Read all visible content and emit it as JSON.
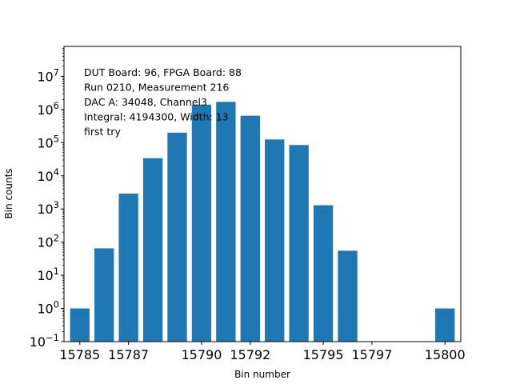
{
  "chart_data": {
    "type": "bar",
    "xlabel": "Bin number",
    "ylabel": "Bin counts",
    "yscale": "log",
    "ylim": [
      0.1,
      80000000
    ],
    "xlim": [
      15784.35,
      15800.65
    ],
    "bar_color": "#1f77b4",
    "grid": false,
    "x_ticks": [
      15785,
      15787,
      15790,
      15792,
      15795,
      15797,
      15800
    ],
    "x_tick_labels": [
      "15785",
      "15787",
      "15790",
      "15792",
      "15795",
      "15797",
      "15800"
    ],
    "y_ticks": [
      {
        "value": 0.1,
        "base": "10",
        "exp": "−1"
      },
      {
        "value": 1,
        "base": "10",
        "exp": "0"
      },
      {
        "value": 10,
        "base": "10",
        "exp": "1"
      },
      {
        "value": 100,
        "base": "10",
        "exp": "2"
      },
      {
        "value": 1000,
        "base": "10",
        "exp": "3"
      },
      {
        "value": 10000,
        "base": "10",
        "exp": "4"
      },
      {
        "value": 100000,
        "base": "10",
        "exp": "5"
      },
      {
        "value": 1000000,
        "base": "10",
        "exp": "6"
      },
      {
        "value": 10000000,
        "base": "10",
        "exp": "7"
      }
    ],
    "x": [
      15785,
      15786,
      15787,
      15788,
      15789,
      15790,
      15791,
      15792,
      15793,
      15794,
      15795,
      15796,
      15800
    ],
    "values": [
      1,
      65,
      2900,
      34000,
      200000,
      1400000,
      1700000,
      650000,
      125000,
      85000,
      1300,
      55,
      1
    ],
    "annotation": [
      "DUT Board: 96, FPGA Board: 88",
      "Run 0210, Measurement 216",
      "DAC A: 34048, Channel3",
      "Integral: 4194300, Width: 13",
      "first try"
    ]
  }
}
